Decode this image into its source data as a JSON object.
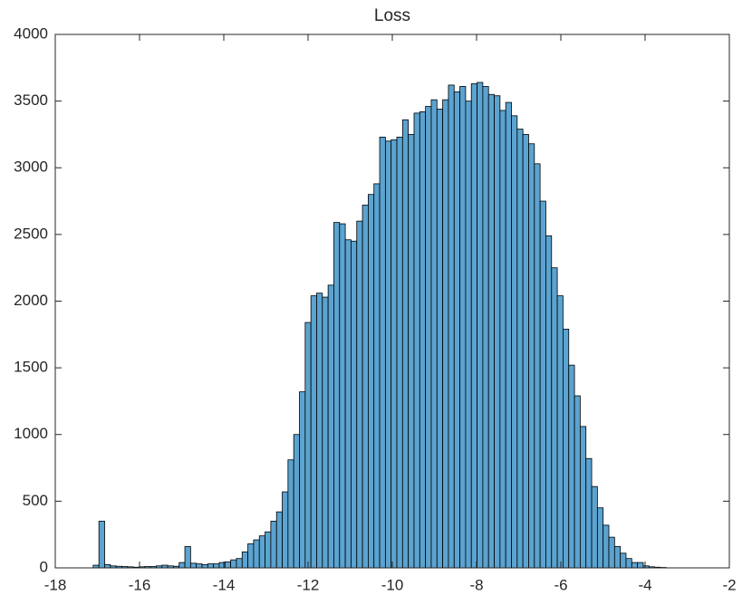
{
  "chart_data": {
    "type": "histogram",
    "title": "Loss",
    "bins": [
      -17.1,
      -16.964,
      -16.828,
      -16.692,
      -16.556,
      -16.42,
      -16.284,
      -16.148,
      -16.012,
      -15.876,
      -15.74,
      -15.604,
      -15.468,
      -15.332,
      -15.196,
      -15.06,
      -14.924,
      -14.788,
      -14.652,
      -14.516,
      -14.38,
      -14.244,
      -14.108,
      -13.972,
      -13.836,
      -13.7,
      -13.564,
      -13.428,
      -13.292,
      -13.156,
      -13.02,
      -12.884,
      -12.748,
      -12.612,
      -12.476,
      -12.34,
      -12.204,
      -12.068,
      -11.932,
      -11.796,
      -11.66,
      -11.524,
      -11.388,
      -11.252,
      -11.116,
      -10.98,
      -10.844,
      -10.708,
      -10.572,
      -10.436,
      -10.3,
      -10.164,
      -10.028,
      -9.892,
      -9.756,
      -9.62,
      -9.484,
      -9.348,
      -9.212,
      -9.076,
      -8.94,
      -8.804,
      -8.668,
      -8.532,
      -8.396,
      -8.26,
      -8.124,
      -7.988,
      -7.852,
      -7.716,
      -7.58,
      -7.444,
      -7.308,
      -7.172,
      -7.036,
      -6.9,
      -6.764,
      -6.628,
      -6.492,
      -6.356,
      -6.22,
      -6.084,
      -5.948,
      -5.812,
      -5.676,
      -5.54,
      -5.404,
      -5.268,
      -5.132,
      -4.996,
      -4.86,
      -4.724,
      -4.588,
      -4.452,
      -4.316,
      -4.18,
      -4.044,
      -3.908,
      -3.772,
      -3.636,
      -3.5
    ],
    "values": [
      20,
      350,
      25,
      15,
      12,
      10,
      8,
      5,
      8,
      10,
      10,
      15,
      20,
      15,
      12,
      40,
      160,
      35,
      30,
      25,
      30,
      30,
      40,
      45,
      60,
      70,
      120,
      180,
      210,
      240,
      270,
      350,
      420,
      570,
      810,
      1000,
      1320,
      1840,
      2040,
      2060,
      2030,
      2120,
      2590,
      2580,
      2460,
      2450,
      2600,
      2720,
      2800,
      2880,
      3230,
      3200,
      3210,
      3230,
      3360,
      3250,
      3410,
      3420,
      3460,
      3510,
      3440,
      3510,
      3620,
      3570,
      3610,
      3500,
      3630,
      3640,
      3610,
      3550,
      3540,
      3430,
      3490,
      3390,
      3290,
      3250,
      3180,
      3030,
      2750,
      2490,
      2250,
      2040,
      1790,
      1520,
      1290,
      1060,
      820,
      610,
      450,
      320,
      230,
      160,
      110,
      70,
      40,
      40,
      15,
      8,
      5,
      3
    ],
    "color": "#5ba3d0",
    "xlim": [
      -18,
      -2
    ],
    "xticks": [
      -18,
      -16,
      -14,
      -12,
      -10,
      -8,
      -6,
      -4,
      -2
    ],
    "ylim": [
      0,
      4000
    ],
    "yticks": [
      0,
      500,
      1000,
      1500,
      2000,
      2500,
      3000,
      3500,
      4000
    ]
  }
}
